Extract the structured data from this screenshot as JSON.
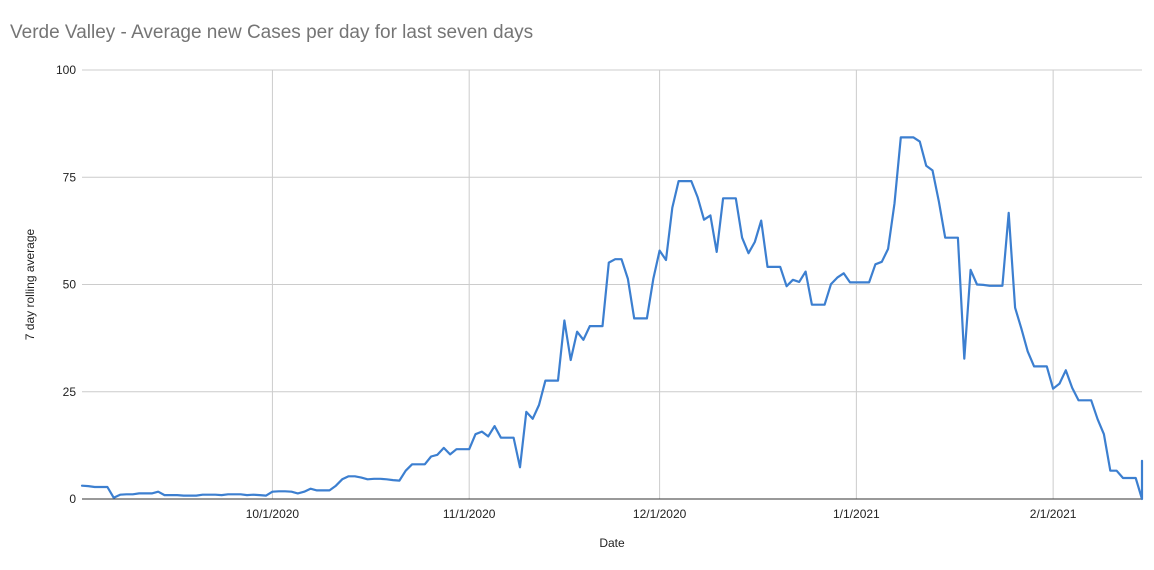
{
  "chart_data": {
    "type": "line",
    "title": "Verde Valley - Average new Cases per day for last seven days",
    "xlabel": "Date",
    "ylabel": "7 day rolling average",
    "ylim": [
      0,
      100
    ],
    "xlim": [
      "2020-09-01",
      "2021-02-15"
    ],
    "grid": true,
    "legend": "none",
    "yticks": [
      "0",
      "25",
      "50",
      "75",
      "100"
    ],
    "xticks": [
      {
        "date": "2020-10-01",
        "label": "10/1/2020"
      },
      {
        "date": "2020-11-01",
        "label": "11/1/2020"
      },
      {
        "date": "2020-12-01",
        "label": "12/1/2020"
      },
      {
        "date": "2021-01-01",
        "label": "1/1/2021"
      },
      {
        "date": "2021-02-01",
        "label": "2/1/2021"
      }
    ],
    "series": [
      {
        "color": "#3c7fd0",
        "points": [
          [
            "2020-09-01",
            3.1
          ],
          [
            "2020-09-02",
            3.0
          ],
          [
            "2020-09-03",
            2.8
          ],
          [
            "2020-09-04",
            2.8
          ],
          [
            "2020-09-05",
            2.8
          ],
          [
            "2020-09-06",
            0.3
          ],
          [
            "2020-09-07",
            1.0
          ],
          [
            "2020-09-08",
            1.1
          ],
          [
            "2020-09-09",
            1.1
          ],
          [
            "2020-09-10",
            1.3
          ],
          [
            "2020-09-11",
            1.3
          ],
          [
            "2020-09-12",
            1.3
          ],
          [
            "2020-09-13",
            1.7
          ],
          [
            "2020-09-14",
            0.9
          ],
          [
            "2020-09-15",
            0.9
          ],
          [
            "2020-09-16",
            0.9
          ],
          [
            "2020-09-17",
            0.8
          ],
          [
            "2020-09-18",
            0.8
          ],
          [
            "2020-09-19",
            0.8
          ],
          [
            "2020-09-20",
            1.0
          ],
          [
            "2020-09-21",
            1.0
          ],
          [
            "2020-09-22",
            1.0
          ],
          [
            "2020-09-23",
            0.9
          ],
          [
            "2020-09-24",
            1.1
          ],
          [
            "2020-09-25",
            1.1
          ],
          [
            "2020-09-26",
            1.1
          ],
          [
            "2020-09-27",
            0.9
          ],
          [
            "2020-09-28",
            1.0
          ],
          [
            "2020-09-29",
            0.9
          ],
          [
            "2020-09-30",
            0.8
          ],
          [
            "2020-10-01",
            1.7
          ],
          [
            "2020-10-02",
            1.8
          ],
          [
            "2020-10-03",
            1.8
          ],
          [
            "2020-10-04",
            1.7
          ],
          [
            "2020-10-05",
            1.3
          ],
          [
            "2020-10-06",
            1.7
          ],
          [
            "2020-10-07",
            2.4
          ],
          [
            "2020-10-08",
            2.0
          ],
          [
            "2020-10-09",
            2.0
          ],
          [
            "2020-10-10",
            2.0
          ],
          [
            "2020-10-11",
            3.1
          ],
          [
            "2020-10-12",
            4.6
          ],
          [
            "2020-10-13",
            5.3
          ],
          [
            "2020-10-14",
            5.3
          ],
          [
            "2020-10-15",
            5.0
          ],
          [
            "2020-10-16",
            4.6
          ],
          [
            "2020-10-17",
            4.7
          ],
          [
            "2020-10-18",
            4.7
          ],
          [
            "2020-10-19",
            4.6
          ],
          [
            "2020-10-20",
            4.4
          ],
          [
            "2020-10-21",
            4.3
          ],
          [
            "2020-10-22",
            6.6
          ],
          [
            "2020-10-23",
            8.1
          ],
          [
            "2020-10-24",
            8.1
          ],
          [
            "2020-10-25",
            8.1
          ],
          [
            "2020-10-26",
            9.9
          ],
          [
            "2020-10-27",
            10.3
          ],
          [
            "2020-10-28",
            11.9
          ],
          [
            "2020-10-29",
            10.4
          ],
          [
            "2020-10-30",
            11.6
          ],
          [
            "2020-10-31",
            11.6
          ],
          [
            "2020-11-01",
            11.6
          ],
          [
            "2020-11-02",
            15.1
          ],
          [
            "2020-11-03",
            15.7
          ],
          [
            "2020-11-04",
            14.6
          ],
          [
            "2020-11-05",
            17.0
          ],
          [
            "2020-11-06",
            14.3
          ],
          [
            "2020-11-07",
            14.3
          ],
          [
            "2020-11-08",
            14.3
          ],
          [
            "2020-11-09",
            7.4
          ],
          [
            "2020-11-10",
            20.3
          ],
          [
            "2020-11-11",
            18.7
          ],
          [
            "2020-11-12",
            21.9
          ],
          [
            "2020-11-13",
            27.6
          ],
          [
            "2020-11-14",
            27.6
          ],
          [
            "2020-11-15",
            27.6
          ],
          [
            "2020-11-16",
            41.6
          ],
          [
            "2020-11-17",
            32.4
          ],
          [
            "2020-11-18",
            39.0
          ],
          [
            "2020-11-19",
            37.1
          ],
          [
            "2020-11-20",
            40.3
          ],
          [
            "2020-11-21",
            40.3
          ],
          [
            "2020-11-22",
            40.3
          ],
          [
            "2020-11-23",
            55.1
          ],
          [
            "2020-11-24",
            55.9
          ],
          [
            "2020-11-25",
            55.9
          ],
          [
            "2020-11-26",
            51.3
          ],
          [
            "2020-11-27",
            42.1
          ],
          [
            "2020-11-28",
            42.1
          ],
          [
            "2020-11-29",
            42.1
          ],
          [
            "2020-11-30",
            51.3
          ],
          [
            "2020-12-01",
            57.9
          ],
          [
            "2020-12-02",
            55.7
          ],
          [
            "2020-12-03",
            67.9
          ],
          [
            "2020-12-04",
            74.1
          ],
          [
            "2020-12-05",
            74.1
          ],
          [
            "2020-12-06",
            74.1
          ],
          [
            "2020-12-07",
            70.3
          ],
          [
            "2020-12-08",
            65.1
          ],
          [
            "2020-12-09",
            66.1
          ],
          [
            "2020-12-10",
            57.6
          ],
          [
            "2020-12-11",
            70.1
          ],
          [
            "2020-12-12",
            70.1
          ],
          [
            "2020-12-13",
            70.1
          ],
          [
            "2020-12-14",
            60.9
          ],
          [
            "2020-12-15",
            57.3
          ],
          [
            "2020-12-16",
            59.9
          ],
          [
            "2020-12-17",
            64.9
          ],
          [
            "2020-12-18",
            54.1
          ],
          [
            "2020-12-19",
            54.1
          ],
          [
            "2020-12-20",
            54.1
          ],
          [
            "2020-12-21",
            49.6
          ],
          [
            "2020-12-22",
            51.1
          ],
          [
            "2020-12-23",
            50.6
          ],
          [
            "2020-12-24",
            53.0
          ],
          [
            "2020-12-25",
            45.3
          ],
          [
            "2020-12-26",
            45.3
          ],
          [
            "2020-12-27",
            45.3
          ],
          [
            "2020-12-28",
            50.1
          ],
          [
            "2020-12-29",
            51.6
          ],
          [
            "2020-12-30",
            52.6
          ],
          [
            "2020-12-31",
            50.5
          ],
          [
            "2021-01-01",
            50.5
          ],
          [
            "2021-01-02",
            50.5
          ],
          [
            "2021-01-03",
            50.5
          ],
          [
            "2021-01-04",
            54.7
          ],
          [
            "2021-01-05",
            55.3
          ],
          [
            "2021-01-06",
            58.3
          ],
          [
            "2021-01-07",
            68.9
          ],
          [
            "2021-01-08",
            84.3
          ],
          [
            "2021-01-09",
            84.3
          ],
          [
            "2021-01-10",
            84.3
          ],
          [
            "2021-01-11",
            83.3
          ],
          [
            "2021-01-12",
            77.7
          ],
          [
            "2021-01-13",
            76.6
          ],
          [
            "2021-01-14",
            69.3
          ],
          [
            "2021-01-15",
            60.9
          ],
          [
            "2021-01-16",
            60.9
          ],
          [
            "2021-01-17",
            60.9
          ],
          [
            "2021-01-18",
            32.7
          ],
          [
            "2021-01-19",
            53.4
          ],
          [
            "2021-01-20",
            50.0
          ],
          [
            "2021-01-21",
            49.9
          ],
          [
            "2021-01-22",
            49.7
          ],
          [
            "2021-01-23",
            49.7
          ],
          [
            "2021-01-24",
            49.7
          ],
          [
            "2021-01-25",
            66.7
          ],
          [
            "2021-01-26",
            44.6
          ],
          [
            "2021-01-27",
            39.7
          ],
          [
            "2021-01-28",
            34.4
          ],
          [
            "2021-01-29",
            30.9
          ],
          [
            "2021-01-30",
            30.9
          ],
          [
            "2021-01-31",
            30.9
          ],
          [
            "2021-02-01",
            25.7
          ],
          [
            "2021-02-02",
            26.9
          ],
          [
            "2021-02-03",
            30.0
          ],
          [
            "2021-02-04",
            25.9
          ],
          [
            "2021-02-05",
            23.0
          ],
          [
            "2021-02-06",
            23.0
          ],
          [
            "2021-02-07",
            23.0
          ],
          [
            "2021-02-08",
            18.6
          ],
          [
            "2021-02-09",
            15.1
          ],
          [
            "2021-02-10",
            6.6
          ],
          [
            "2021-02-11",
            6.6
          ],
          [
            "2021-02-12",
            4.9
          ],
          [
            "2021-02-13",
            4.9
          ],
          [
            "2021-02-14",
            4.9
          ],
          [
            "2021-02-15",
            0.0
          ],
          [
            "2021-02-16",
            8.9
          ]
        ]
      }
    ]
  }
}
